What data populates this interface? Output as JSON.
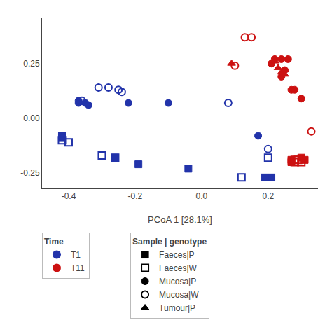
{
  "chart_data": {
    "type": "scatter",
    "x_label": "PCoA 1 [28.1%]",
    "xlim": [
      -0.48,
      0.35
    ],
    "ylim": [
      -0.32,
      0.46
    ],
    "xticks": [
      -0.4,
      -0.2,
      {
        "value": 0.0,
        "label": "0.0"
      },
      0.2
    ],
    "yticks": [
      -0.25,
      {
        "value": 0.0,
        "label": "0.00"
      },
      0.25
    ],
    "grid": false,
    "color_legend": {
      "title": "Time",
      "entries": [
        {
          "name": "T1",
          "color": "#2233aa"
        },
        {
          "name": "T11",
          "color": "#cc1111"
        }
      ]
    },
    "series_legend_title": "Sample | genotype",
    "series": [
      {
        "name": "Faeces|P",
        "marker": "square",
        "color": "black",
        "x": [
          -0.42,
          -0.42,
          -0.26,
          -0.19,
          -0.04,
          0.19,
          0.21,
          0.27,
          0.27,
          0.3,
          0.31
        ],
        "values": [
          -0.08,
          -0.09,
          -0.18,
          -0.21,
          -0.23,
          -0.27,
          -0.27,
          -0.19,
          -0.2,
          -0.18,
          -0.19
        ],
        "colors": [
          "#2233aa",
          "#2233aa",
          "#2233aa",
          "#2233aa",
          "#2233aa",
          "#2233aa",
          "#2233aa",
          "#cc1111",
          "#cc1111",
          "#cc1111",
          "#cc1111"
        ]
      },
      {
        "name": "Faeces|W",
        "marker": "square-open",
        "color": "black",
        "x": [
          -0.42,
          -0.4,
          -0.3,
          -0.26,
          0.12,
          0.2,
          0.28,
          0.28,
          0.29,
          0.3
        ],
        "values": [
          -0.1,
          -0.11,
          -0.17,
          -0.18,
          -0.27,
          -0.18,
          -0.19,
          -0.2,
          -0.19,
          -0.2
        ],
        "colors": [
          "#2233aa",
          "#2233aa",
          "#2233aa",
          "#2233aa",
          "#2233aa",
          "#2233aa",
          "#cc1111",
          "#cc1111",
          "#cc1111",
          "#cc1111"
        ]
      },
      {
        "name": "Mucosa|P",
        "marker": "circle",
        "color": "black",
        "x": [
          -0.37,
          -0.37,
          -0.35,
          -0.34,
          -0.22,
          -0.1,
          0.17,
          0.21,
          0.22,
          0.24,
          0.24,
          0.25,
          0.26,
          0.27,
          0.28,
          0.3
        ],
        "values": [
          0.08,
          0.07,
          0.07,
          0.06,
          0.07,
          0.07,
          -0.08,
          0.25,
          0.27,
          0.27,
          0.19,
          0.22,
          0.27,
          0.13,
          0.13,
          0.09
        ],
        "colors": [
          "#2233aa",
          "#2233aa",
          "#2233aa",
          "#2233aa",
          "#2233aa",
          "#2233aa",
          "#2233aa",
          "#cc1111",
          "#cc1111",
          "#cc1111",
          "#cc1111",
          "#cc1111",
          "#cc1111",
          "#cc1111",
          "#cc1111",
          "#cc1111"
        ]
      },
      {
        "name": "Mucosa|W",
        "marker": "circle-open",
        "color": "black",
        "x": [
          -0.36,
          -0.31,
          -0.28,
          -0.25,
          -0.24,
          0.08,
          0.2,
          0.33,
          0.1,
          0.13,
          0.15
        ],
        "values": [
          0.08,
          0.14,
          0.14,
          0.13,
          0.12,
          0.07,
          -0.14,
          -0.06,
          0.24,
          0.37,
          0.37
        ],
        "colors": [
          "#2233aa",
          "#2233aa",
          "#2233aa",
          "#2233aa",
          "#2233aa",
          "#2233aa",
          "#2233aa",
          "#cc1111",
          "#cc1111",
          "#cc1111",
          "#cc1111"
        ]
      },
      {
        "name": "Tumour|P",
        "marker": "triangle-up",
        "color": "black",
        "x": [
          0.09,
          0.22,
          0.23,
          0.24,
          0.25,
          0.25
        ],
        "values": [
          0.25,
          0.26,
          0.23,
          0.21,
          0.22,
          0.2
        ],
        "colors": [
          "#cc1111",
          "#cc1111",
          "#cc1111",
          "#cc1111",
          "#cc1111",
          "#cc1111"
        ]
      }
    ]
  }
}
